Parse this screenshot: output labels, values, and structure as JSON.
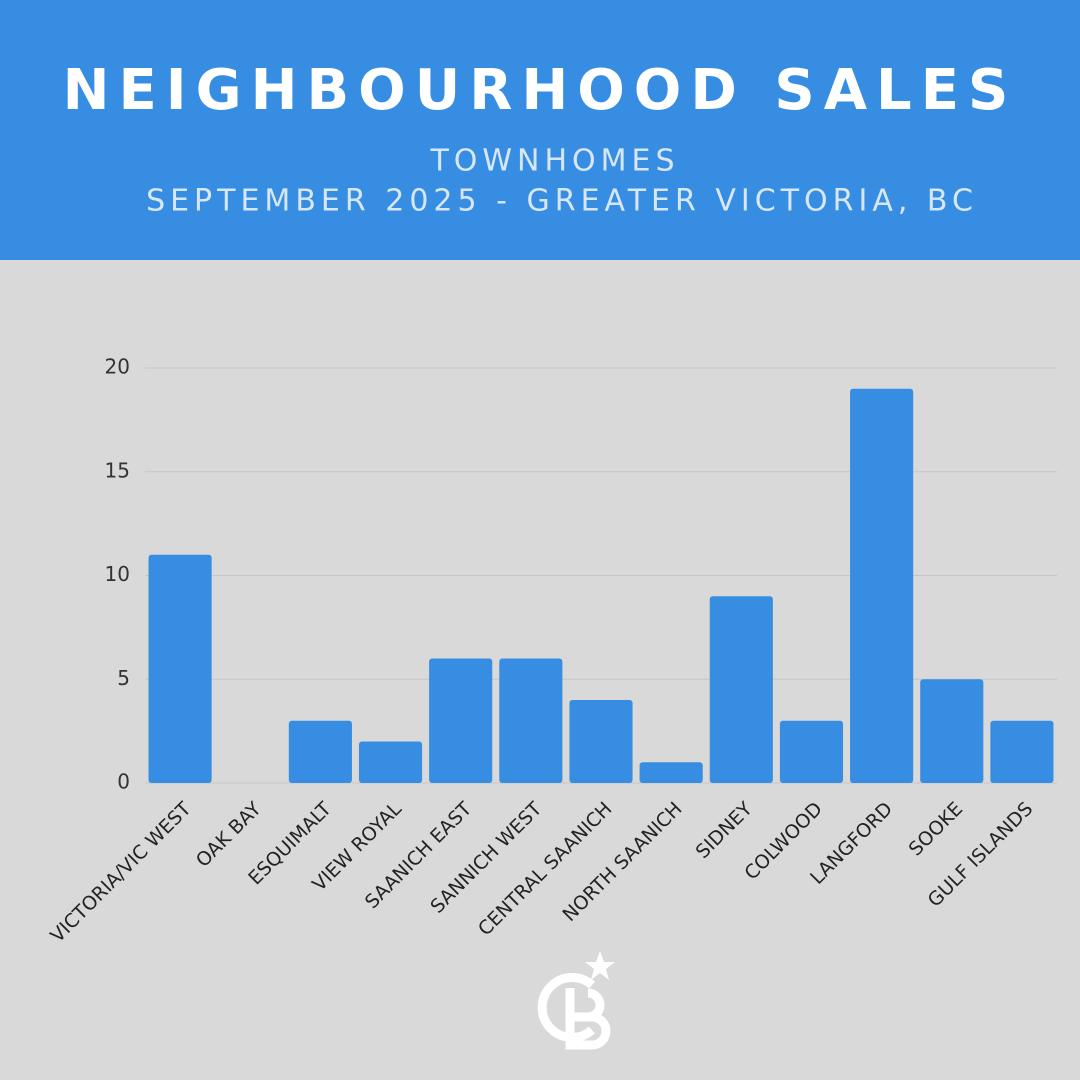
{
  "chart_data": {
    "type": "bar",
    "title": "NEIGHBOURHOOD SALES",
    "subtitle": [
      "TOWNHOMES",
      "SEPTEMBER 2025 - GREATER VICTORIA, BC"
    ],
    "categories": [
      "VICTORIA/VIC WEST",
      "OAK BAY",
      "ESQUIMALT",
      "VIEW ROYAL",
      "SAANICH EAST",
      "SANNICH WEST",
      "CENTRAL SAANICH",
      "NORTH SAANICH",
      "SIDNEY",
      "COLWOOD",
      "LANGFORD",
      "SOOKE",
      "GULF ISLANDS"
    ],
    "values": [
      11,
      0,
      3,
      2,
      6,
      6,
      4,
      1,
      9,
      3,
      19,
      5,
      3
    ],
    "color": "#378de2",
    "ylim": [
      0,
      20
    ],
    "yticks": [
      0,
      5,
      10,
      15,
      20
    ],
    "grid": true
  }
}
